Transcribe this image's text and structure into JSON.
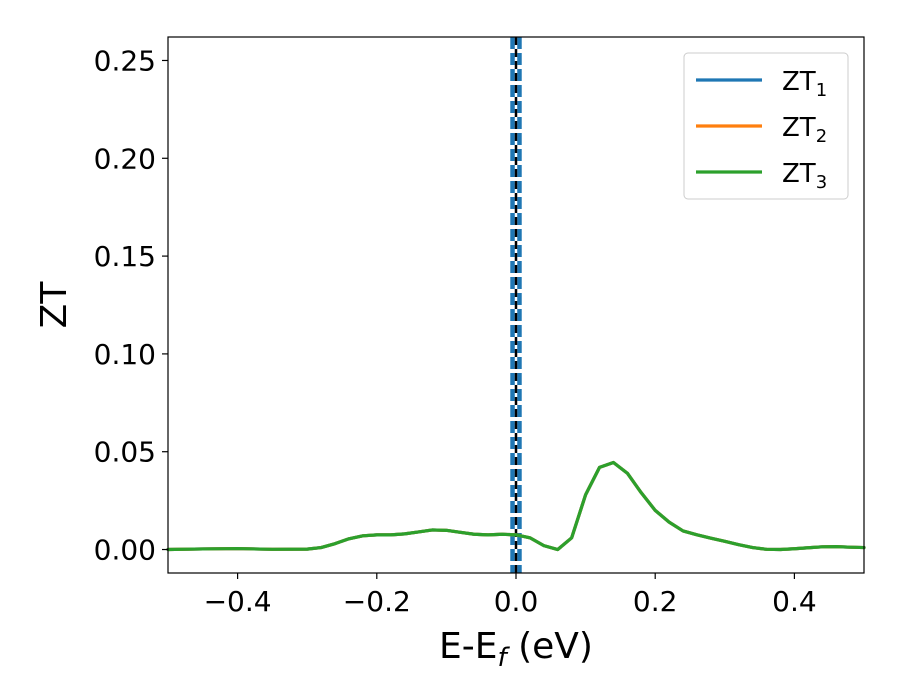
{
  "chart_data": {
    "type": "line",
    "title": "",
    "xlabel": {
      "main": "E-E",
      "sub": "f",
      "suffix": " (eV)"
    },
    "ylabel": "ZT",
    "xlim": [
      -0.5,
      0.5
    ],
    "ylim": [
      -0.012,
      0.262
    ],
    "xticks": [
      -0.4,
      -0.2,
      0.0,
      0.2,
      0.4
    ],
    "xtick_labels": [
      "−0.4",
      "−0.2",
      "0.0",
      "0.2",
      "0.4"
    ],
    "yticks": [
      0.0,
      0.05,
      0.1,
      0.15,
      0.2,
      0.25
    ],
    "ytick_labels": [
      "0.00",
      "0.05",
      "0.10",
      "0.15",
      "0.20",
      "0.25"
    ],
    "grid": false,
    "legend_position": "top-right",
    "vlines": [
      {
        "x": -0.005,
        "color": "#1f77b4",
        "style": "dashed"
      },
      {
        "x": 0.005,
        "color": "#1f77b4",
        "style": "dashed"
      },
      {
        "x": 0.0,
        "color": "#000000",
        "style": "dashed"
      }
    ],
    "x": [
      -0.5,
      -0.45,
      -0.4,
      -0.35,
      -0.3,
      -0.28,
      -0.26,
      -0.24,
      -0.22,
      -0.2,
      -0.18,
      -0.16,
      -0.14,
      -0.12,
      -0.1,
      -0.08,
      -0.06,
      -0.04,
      -0.02,
      0.0,
      0.02,
      0.04,
      0.06,
      0.08,
      0.1,
      0.12,
      0.14,
      0.16,
      0.18,
      0.2,
      0.22,
      0.24,
      0.26,
      0.28,
      0.3,
      0.32,
      0.34,
      0.36,
      0.38,
      0.4,
      0.42,
      0.44,
      0.46,
      0.48,
      0.5
    ],
    "series": [
      {
        "name_main": "ZT",
        "name_sub": "1",
        "color": "#1f77b4",
        "values": [
          0.0,
          0.0003,
          0.0005,
          0.0001,
          0.0002,
          0.001,
          0.003,
          0.0055,
          0.007,
          0.0075,
          0.0075,
          0.008,
          0.009,
          0.01,
          0.0098,
          0.0088,
          0.0078,
          0.0075,
          0.0078,
          0.0075,
          0.006,
          0.002,
          0.0,
          0.006,
          0.028,
          0.042,
          0.0445,
          0.039,
          0.029,
          0.02,
          0.014,
          0.0095,
          0.0075,
          0.0058,
          0.0042,
          0.0025,
          0.001,
          0.0001,
          0.0,
          0.0004,
          0.0009,
          0.0014,
          0.0015,
          0.0012,
          0.001
        ]
      },
      {
        "name_main": "ZT",
        "name_sub": "2",
        "color": "#ff7f0e",
        "values": [
          0.0,
          0.0003,
          0.0005,
          0.0001,
          0.0002,
          0.001,
          0.003,
          0.0055,
          0.007,
          0.0075,
          0.0075,
          0.008,
          0.009,
          0.01,
          0.0098,
          0.0088,
          0.0078,
          0.0075,
          0.0078,
          0.0075,
          0.006,
          0.002,
          0.0,
          0.006,
          0.028,
          0.042,
          0.0445,
          0.039,
          0.029,
          0.02,
          0.014,
          0.0095,
          0.0075,
          0.0058,
          0.0042,
          0.0025,
          0.001,
          0.0001,
          0.0,
          0.0004,
          0.0009,
          0.0014,
          0.0015,
          0.0012,
          0.001
        ]
      },
      {
        "name_main": "ZT",
        "name_sub": "3",
        "color": "#2ca02c",
        "values": [
          0.0,
          0.0003,
          0.0005,
          0.0001,
          0.0002,
          0.001,
          0.003,
          0.0055,
          0.007,
          0.0075,
          0.0075,
          0.008,
          0.009,
          0.01,
          0.0098,
          0.0088,
          0.0078,
          0.0075,
          0.0078,
          0.0075,
          0.006,
          0.002,
          0.0,
          0.006,
          0.028,
          0.042,
          0.0445,
          0.039,
          0.029,
          0.02,
          0.014,
          0.0095,
          0.0075,
          0.0058,
          0.0042,
          0.0025,
          0.001,
          0.0001,
          0.0,
          0.0004,
          0.0009,
          0.0014,
          0.0015,
          0.0012,
          0.001
        ]
      }
    ]
  }
}
